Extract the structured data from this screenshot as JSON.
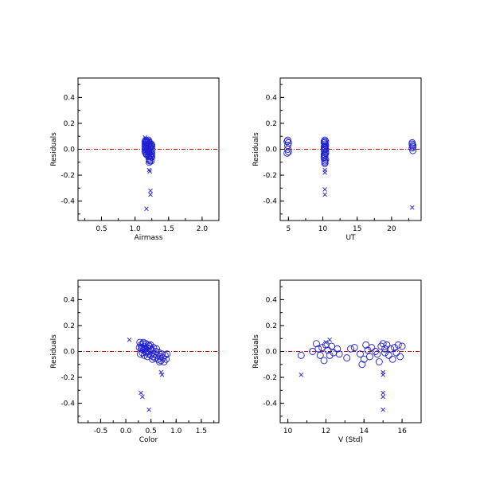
{
  "chart_data": [
    {
      "type": "scatter",
      "id": "airmass",
      "xlabel": "Airmass",
      "ylabel": "Residuals",
      "xlim": [
        0.15,
        2.25
      ],
      "ylim": [
        -0.55,
        0.55
      ],
      "xticks": [
        0.5,
        1.0,
        1.5,
        2.0
      ],
      "xticklabels": [
        "0.5",
        "1.0",
        "1.5",
        "2.0"
      ],
      "yticks": [
        -0.4,
        -0.2,
        0.0,
        0.2,
        0.4
      ],
      "yticklabels": [
        "-0.4",
        "-0.2",
        "0.0",
        "0.2",
        "0.4"
      ],
      "zero_line": 0,
      "series": [
        {
          "marker": "circle",
          "points": [
            [
              1.15,
              0.06
            ],
            [
              1.15,
              0.04
            ],
            [
              1.15,
              0.02
            ],
            [
              1.15,
              0.0
            ],
            [
              1.15,
              -0.02
            ],
            [
              1.16,
              0.07
            ],
            [
              1.16,
              0.05
            ],
            [
              1.16,
              0.03
            ],
            [
              1.16,
              0.01
            ],
            [
              1.16,
              -0.03
            ],
            [
              1.17,
              0.06
            ],
            [
              1.17,
              0.02
            ],
            [
              1.17,
              -0.01
            ],
            [
              1.18,
              0.04
            ],
            [
              1.18,
              0.0
            ],
            [
              1.18,
              -0.04
            ],
            [
              1.19,
              0.05
            ],
            [
              1.19,
              0.01
            ],
            [
              1.19,
              -0.02
            ],
            [
              1.2,
              0.06
            ],
            [
              1.2,
              0.03
            ],
            [
              1.2,
              -0.01
            ],
            [
              1.2,
              -0.05
            ],
            [
              1.21,
              0.04
            ],
            [
              1.21,
              0.0
            ],
            [
              1.21,
              -0.03
            ],
            [
              1.21,
              -0.07
            ],
            [
              1.22,
              0.05
            ],
            [
              1.22,
              0.02
            ],
            [
              1.22,
              -0.02
            ],
            [
              1.22,
              -0.05
            ],
            [
              1.22,
              -0.08
            ],
            [
              1.23,
              0.03
            ],
            [
              1.23,
              0.01
            ],
            [
              1.23,
              -0.04
            ],
            [
              1.23,
              -0.06
            ],
            [
              1.24,
              0.04
            ],
            [
              1.24,
              0.02
            ],
            [
              1.24,
              -0.02
            ],
            [
              1.24,
              -0.05
            ],
            [
              1.24,
              -0.09
            ],
            [
              1.25,
              0.03
            ],
            [
              1.25,
              0.0
            ],
            [
              1.25,
              -0.03
            ],
            [
              1.25,
              -0.06
            ],
            [
              1.21,
              -0.1
            ],
            [
              1.2,
              0.07
            ],
            [
              1.18,
              0.06
            ],
            [
              1.22,
              -0.09
            ],
            [
              1.17,
              -0.04
            ]
          ]
        },
        {
          "marker": "x",
          "points": [
            [
              1.15,
              0.09
            ],
            [
              1.21,
              -0.16
            ],
            [
              1.22,
              -0.17
            ],
            [
              1.23,
              -0.32
            ],
            [
              1.23,
              -0.35
            ],
            [
              1.17,
              -0.46
            ]
          ]
        }
      ]
    },
    {
      "type": "scatter",
      "id": "ut",
      "xlabel": "UT",
      "ylabel": "Residuals",
      "xlim": [
        3.8,
        24.3
      ],
      "ylim": [
        -0.55,
        0.55
      ],
      "xticks": [
        5,
        10,
        15,
        20
      ],
      "xticklabels": [
        "5",
        "10",
        "15",
        "20"
      ],
      "yticks": [
        -0.4,
        -0.2,
        0.0,
        0.2,
        0.4
      ],
      "yticklabels": [
        "-0.4",
        "-0.2",
        "0.0",
        "0.2",
        "0.4"
      ],
      "zero_line": 0,
      "series": [
        {
          "marker": "circle",
          "points": [
            [
              4.8,
              0.06
            ],
            [
              4.9,
              0.03
            ],
            [
              4.9,
              0.0
            ],
            [
              5.0,
              -0.02
            ],
            [
              4.8,
              -0.03
            ],
            [
              5.0,
              0.05
            ],
            [
              4.9,
              0.07
            ],
            [
              10.2,
              0.06
            ],
            [
              10.3,
              0.04
            ],
            [
              10.3,
              0.02
            ],
            [
              10.2,
              0.0
            ],
            [
              10.4,
              -0.02
            ],
            [
              10.3,
              -0.04
            ],
            [
              10.2,
              -0.06
            ],
            [
              10.4,
              -0.08
            ],
            [
              10.3,
              -0.1
            ],
            [
              10.2,
              0.05
            ],
            [
              10.4,
              0.03
            ],
            [
              10.3,
              0.01
            ],
            [
              10.2,
              -0.01
            ],
            [
              10.4,
              -0.03
            ],
            [
              10.3,
              -0.05
            ],
            [
              10.2,
              -0.07
            ],
            [
              10.3,
              -0.09
            ],
            [
              10.4,
              0.06
            ],
            [
              10.2,
              0.02
            ],
            [
              10.3,
              -0.11
            ],
            [
              10.4,
              0.0
            ],
            [
              10.2,
              -0.04
            ],
            [
              10.3,
              0.07
            ],
            [
              23.0,
              0.05
            ],
            [
              23.1,
              0.03
            ],
            [
              23.0,
              0.01
            ],
            [
              23.1,
              -0.01
            ],
            [
              23.0,
              0.04
            ],
            [
              23.1,
              0.02
            ]
          ]
        },
        {
          "marker": "x",
          "points": [
            [
              10.3,
              -0.16
            ],
            [
              10.3,
              -0.18
            ],
            [
              10.3,
              -0.31
            ],
            [
              10.3,
              -0.35
            ],
            [
              23.0,
              -0.45
            ]
          ]
        }
      ]
    },
    {
      "type": "scatter",
      "id": "color",
      "xlabel": "Color",
      "ylabel": "Residuals",
      "xlim": [
        -0.95,
        1.85
      ],
      "ylim": [
        -0.55,
        0.55
      ],
      "xticks": [
        -0.5,
        0.0,
        0.5,
        1.0,
        1.5
      ],
      "xticklabels": [
        "-0.5",
        "0.0",
        "0.5",
        "1.0",
        "1.5"
      ],
      "yticks": [
        -0.4,
        -0.2,
        0.0,
        0.2,
        0.4
      ],
      "yticklabels": [
        "-0.4",
        "-0.2",
        "0.0",
        "0.2",
        "0.4"
      ],
      "zero_line": 0,
      "series": [
        {
          "marker": "circle",
          "points": [
            [
              0.28,
              0.07
            ],
            [
              0.3,
              0.05
            ],
            [
              0.32,
              0.03
            ],
            [
              0.34,
              0.06
            ],
            [
              0.35,
              0.01
            ],
            [
              0.36,
              0.04
            ],
            [
              0.38,
              0.02
            ],
            [
              0.4,
              0.06
            ],
            [
              0.41,
              -0.01
            ],
            [
              0.42,
              0.03
            ],
            [
              0.44,
              0.0
            ],
            [
              0.45,
              0.05
            ],
            [
              0.46,
              -0.02
            ],
            [
              0.48,
              0.02
            ],
            [
              0.5,
              -0.03
            ],
            [
              0.52,
              0.01
            ],
            [
              0.54,
              -0.04
            ],
            [
              0.55,
              0.03
            ],
            [
              0.57,
              -0.02
            ],
            [
              0.58,
              -0.05
            ],
            [
              0.6,
              0.0
            ],
            [
              0.62,
              -0.03
            ],
            [
              0.64,
              -0.06
            ],
            [
              0.66,
              -0.01
            ],
            [
              0.68,
              -0.04
            ],
            [
              0.7,
              -0.07
            ],
            [
              0.72,
              -0.02
            ],
            [
              0.74,
              -0.05
            ],
            [
              0.76,
              -0.08
            ],
            [
              0.78,
              -0.03
            ],
            [
              0.8,
              -0.06
            ],
            [
              0.82,
              -0.02
            ],
            [
              0.31,
              0.02
            ],
            [
              0.33,
              -0.01
            ],
            [
              0.37,
              -0.03
            ],
            [
              0.39,
              0.0
            ],
            [
              0.43,
              -0.04
            ],
            [
              0.47,
              0.04
            ],
            [
              0.53,
              -0.06
            ],
            [
              0.27,
              0.03
            ],
            [
              0.29,
              -0.02
            ],
            [
              0.35,
              0.07
            ],
            [
              0.49,
              0.05
            ],
            [
              0.61,
              0.02
            ],
            [
              0.67,
              -0.08
            ]
          ]
        },
        {
          "marker": "x",
          "points": [
            [
              0.07,
              0.09
            ],
            [
              0.7,
              -0.16
            ],
            [
              0.72,
              -0.18
            ],
            [
              0.3,
              -0.32
            ],
            [
              0.33,
              -0.35
            ],
            [
              0.46,
              -0.45
            ]
          ]
        }
      ]
    },
    {
      "type": "scatter",
      "id": "vstd",
      "xlabel": "V (Std)",
      "ylabel": "Residuals",
      "xlim": [
        9.6,
        17.0
      ],
      "ylim": [
        -0.55,
        0.55
      ],
      "xticks": [
        10,
        12,
        14,
        16
      ],
      "xticklabels": [
        "10",
        "12",
        "14",
        "16"
      ],
      "yticks": [
        -0.4,
        -0.2,
        0.0,
        0.2,
        0.4
      ],
      "yticklabels": [
        "-0.4",
        "-0.2",
        "0.0",
        "0.2",
        "0.4"
      ],
      "zero_line": 0,
      "series": [
        {
          "marker": "circle",
          "points": [
            [
              10.7,
              -0.03
            ],
            [
              11.3,
              0.0
            ],
            [
              11.5,
              0.06
            ],
            [
              11.6,
              0.02
            ],
            [
              11.7,
              -0.03
            ],
            [
              11.8,
              0.03
            ],
            [
              11.9,
              -0.07
            ],
            [
              12.0,
              0.05
            ],
            [
              12.1,
              0.01
            ],
            [
              12.2,
              -0.03
            ],
            [
              12.3,
              0.04
            ],
            [
              12.4,
              -0.01
            ],
            [
              12.6,
              0.02
            ],
            [
              12.7,
              -0.02
            ],
            [
              13.1,
              -0.05
            ],
            [
              13.3,
              0.02
            ],
            [
              13.5,
              0.03
            ],
            [
              13.8,
              -0.02
            ],
            [
              13.9,
              -0.1
            ],
            [
              14.0,
              -0.06
            ],
            [
              14.1,
              0.05
            ],
            [
              14.2,
              0.01
            ],
            [
              14.3,
              -0.04
            ],
            [
              14.4,
              0.03
            ],
            [
              14.6,
              0.0
            ],
            [
              14.7,
              -0.02
            ],
            [
              14.9,
              0.04
            ],
            [
              15.0,
              0.06
            ],
            [
              15.1,
              0.02
            ],
            [
              15.1,
              -0.01
            ],
            [
              15.2,
              0.05
            ],
            [
              15.3,
              -0.03
            ],
            [
              15.4,
              0.02
            ],
            [
              15.5,
              -0.06
            ],
            [
              15.6,
              0.03
            ],
            [
              15.7,
              -0.01
            ],
            [
              15.8,
              0.05
            ],
            [
              15.9,
              -0.04
            ],
            [
              16.0,
              0.04
            ],
            [
              14.8,
              -0.08
            ]
          ]
        },
        {
          "marker": "x",
          "points": [
            [
              10.7,
              -0.18
            ],
            [
              12.0,
              0.07
            ],
            [
              12.2,
              0.09
            ],
            [
              15.0,
              -0.16
            ],
            [
              15.0,
              -0.18
            ],
            [
              15.0,
              -0.32
            ],
            [
              15.0,
              -0.35
            ],
            [
              15.0,
              -0.45
            ]
          ]
        }
      ]
    }
  ]
}
